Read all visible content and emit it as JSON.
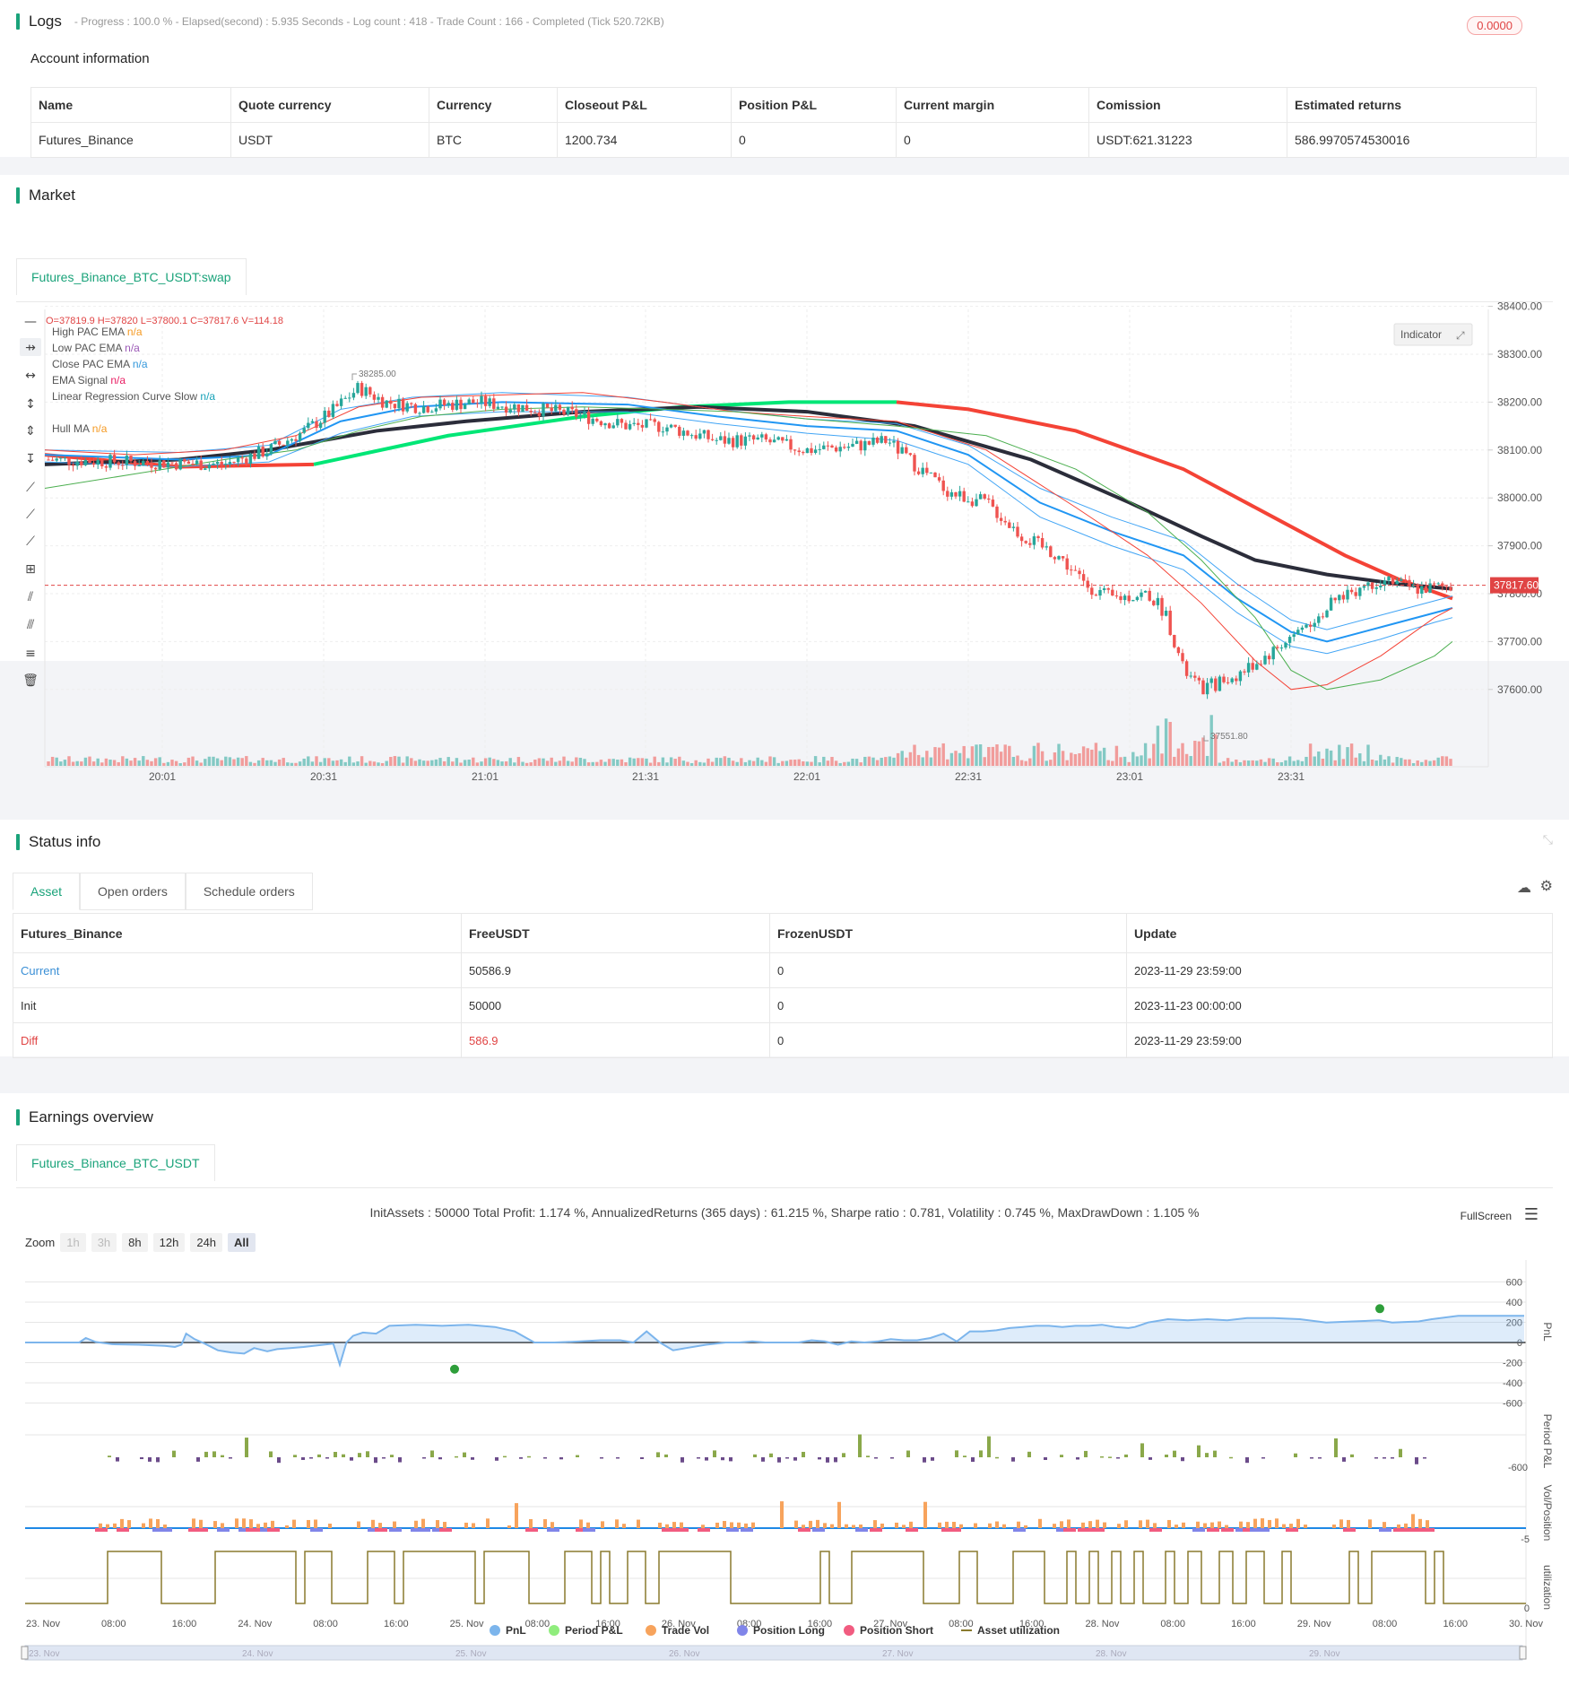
{
  "logs": {
    "title": "Logs",
    "meta": "- Progress : 100.0 % - Elapsed(second) : 5.935 Seconds - Log count : 418 - Trade Count : 166 - Completed (Tick 520.72KB)",
    "badge": "0.0000"
  },
  "account": {
    "title": "Account information",
    "headers": [
      "Name",
      "Quote currency",
      "Currency",
      "Closeout P&L",
      "Position P&L",
      "Current margin",
      "Comission",
      "Estimated returns"
    ],
    "row": [
      "Futures_Binance",
      "USDT",
      "BTC",
      "1200.734",
      "0",
      "0",
      "USDT:621.31223",
      "586.9970574530016"
    ]
  },
  "market": {
    "title": "Market",
    "tab": "Futures_Binance_BTC_USDT:swap",
    "ohlc": "O=37819.9 H=37820 L=37800.1 C=37817.6 V=114.18",
    "indicator_button": "Indicator",
    "legend": [
      {
        "name": "High PAC EMA",
        "value": "n/a",
        "color": "#f59a23"
      },
      {
        "name": "Low PAC EMA",
        "value": "n/a",
        "color": "#9b59b6"
      },
      {
        "name": "Close PAC EMA",
        "value": "n/a",
        "color": "#3498db"
      },
      {
        "name": "EMA Signal",
        "value": "n/a",
        "color": "#e91e63"
      },
      {
        "name": "Linear Regression Curve Slow",
        "value": "n/a",
        "color": "#17a2b8"
      },
      {
        "name": "Hull MA",
        "value": "n/a",
        "color": "#f59a23"
      }
    ],
    "price_ticks": [
      "38400.00",
      "38300.00",
      "38200.00",
      "38100.00",
      "38000.00",
      "37900.00",
      "37800.00",
      "37700.00",
      "37600.00"
    ],
    "time_ticks": [
      "20:01",
      "20:31",
      "21:01",
      "21:31",
      "22:01",
      "22:31",
      "23:01",
      "23:31"
    ],
    "last_price": "37817.60",
    "high_label": "38285.00",
    "low_label": "37551.80"
  },
  "status": {
    "title": "Status info",
    "tabs": [
      "Asset",
      "Open orders",
      "Schedule orders"
    ],
    "headers": [
      "Futures_Binance",
      "FreeUSDT",
      "FrozenUSDT",
      "Update"
    ],
    "rows": [
      {
        "label": "Current",
        "free": "50586.9",
        "frozen": "0",
        "update": "2023-11-29 23:59:00",
        "color": "#3a8fd6"
      },
      {
        "label": "Init",
        "free": "50000",
        "frozen": "0",
        "update": "2023-11-23 00:00:00",
        "color": "#333333"
      },
      {
        "label": "Diff",
        "free": "586.9",
        "frozen": "0",
        "update": "2023-11-29 23:59:00",
        "color": "#e04444"
      }
    ]
  },
  "earnings": {
    "title": "Earnings overview",
    "tab": "Futures_Binance_BTC_USDT",
    "summary": "InitAssets : 50000 Total Profit: 1.174 %, AnnualizedReturns (365 days) : 61.215 %, Sharpe ratio : 0.781, Volatility : 0.745 %, MaxDrawDown : 1.105 %",
    "fullscreen": "FullScreen",
    "zoom_label": "Zoom",
    "zoom_options": [
      "1h",
      "3h",
      "8h",
      "12h",
      "24h",
      "All"
    ],
    "pnl_ticks": [
      "600",
      "400",
      "200",
      "0",
      "-200",
      "-400",
      "-600"
    ],
    "axis_labels": [
      "PnL",
      "Period P&L",
      "Vol/Position",
      "utilization"
    ],
    "period_tick": "-600",
    "vol_tick": "-5",
    "util_tick": "0",
    "x_ticks": [
      "23. Nov",
      "08:00",
      "16:00",
      "24. Nov",
      "08:00",
      "16:00",
      "25. Nov",
      "08:00",
      "16:00",
      "26. Nov",
      "08:00",
      "16:00",
      "27. Nov",
      "08:00",
      "16:00",
      "28. Nov",
      "08:00",
      "16:00",
      "29. Nov",
      "08:00",
      "16:00",
      "30. Nov"
    ],
    "legend": [
      {
        "name": "PnL",
        "color": "#7cb5ec"
      },
      {
        "name": "Period P&L",
        "color": "#90ed7d"
      },
      {
        "name": "Trade Vol",
        "color": "#f7a35c"
      },
      {
        "name": "Position Long",
        "color": "#8085e9"
      },
      {
        "name": "Position Short",
        "color": "#f15c80"
      },
      {
        "name": "Asset utilization",
        "color": "#8a7a2e"
      }
    ],
    "nav_ticks": [
      "23. Nov",
      "24. Nov",
      "25. Nov",
      "26. Nov",
      "27. Nov",
      "28. Nov",
      "29. Nov"
    ]
  }
}
